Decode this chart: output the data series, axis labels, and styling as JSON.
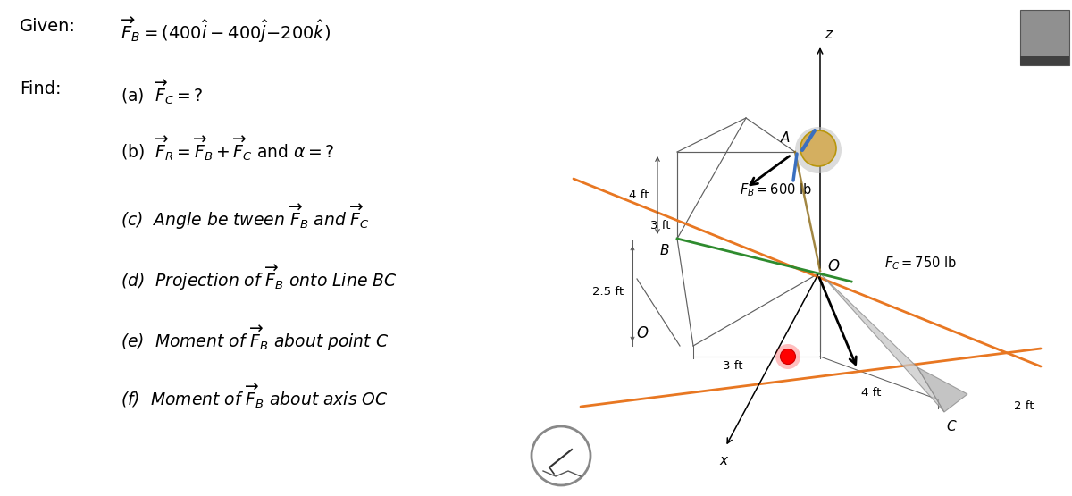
{
  "given_label": "Given:",
  "find_label": "Find:",
  "given_eq": "$\\overrightarrow{F}_B = (400\\hat{i} - 400\\hat{j}\\text{- }200\\hat{k})$",
  "items_ab": [
    "(a)  $\\overrightarrow{F}_C = ?$",
    "(b)  $\\overrightarrow{F}_R = \\overrightarrow{F}_B + \\overrightarrow{F}_C$ and $\\alpha = ?$"
  ],
  "items_cf": [
    "(c)  Angle be tween $\\overrightarrow{F}_B$ and $\\overrightarrow{F}_C$",
    "(d)  Projection of $\\overrightarrow{F}_B$ onto Line $BC$",
    "(e)  Moment of $\\overrightarrow{F}_B$ about point $C$",
    "(f)  Moment of $\\overrightarrow{F}_B$ about axis $OC$"
  ],
  "bg_color": "#ffffff",
  "text_color": "#000000",
  "orange_color": "#E87722",
  "green_color": "#2E8B2E",
  "label_FB": "$F_B = 600$ lb",
  "label_FC": "$F_C = 750$ lb",
  "dim_4ft_top": "4 ft",
  "dim_3ft_b": "3 ft",
  "dim_25ft": "2.5 ft",
  "dim_3ft_bot": "3 ft",
  "dim_4ft_bot": "4 ft",
  "dim_2ft": "2 ft"
}
